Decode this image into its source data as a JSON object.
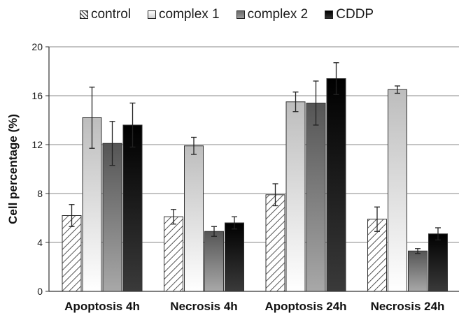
{
  "chart_data": {
    "type": "bar",
    "title": "",
    "xlabel": "",
    "ylabel": "Cell percentage (%)",
    "ylim": [
      0,
      20
    ],
    "yticks": [
      0,
      4,
      8,
      12,
      16,
      20
    ],
    "grid": true,
    "legend_position": "top",
    "categories": [
      "Apoptosis 4h",
      "Necrosis 4h",
      "Apoptosis 24h",
      "Necrosis 24h"
    ],
    "series": [
      {
        "name": "control",
        "style": "hatched",
        "color": "#ffffff",
        "values": [
          6.2,
          6.1,
          7.9,
          5.9
        ],
        "errors": [
          0.9,
          0.6,
          0.9,
          1.0
        ]
      },
      {
        "name": "complex 1",
        "style": "gradient-light",
        "color": "#d9d9d9",
        "values": [
          14.2,
          11.9,
          15.5,
          16.5
        ],
        "errors": [
          2.5,
          0.7,
          0.8,
          0.3
        ]
      },
      {
        "name": "complex 2",
        "style": "gradient-mid",
        "color": "#7f7f7f",
        "values": [
          12.1,
          4.9,
          15.4,
          3.3
        ],
        "errors": [
          1.8,
          0.4,
          1.8,
          0.2
        ]
      },
      {
        "name": "CDDP",
        "style": "gradient-dark",
        "color": "#1a1a1a",
        "values": [
          13.6,
          5.6,
          17.4,
          4.7
        ],
        "errors": [
          1.8,
          0.5,
          1.3,
          0.5
        ]
      }
    ]
  }
}
